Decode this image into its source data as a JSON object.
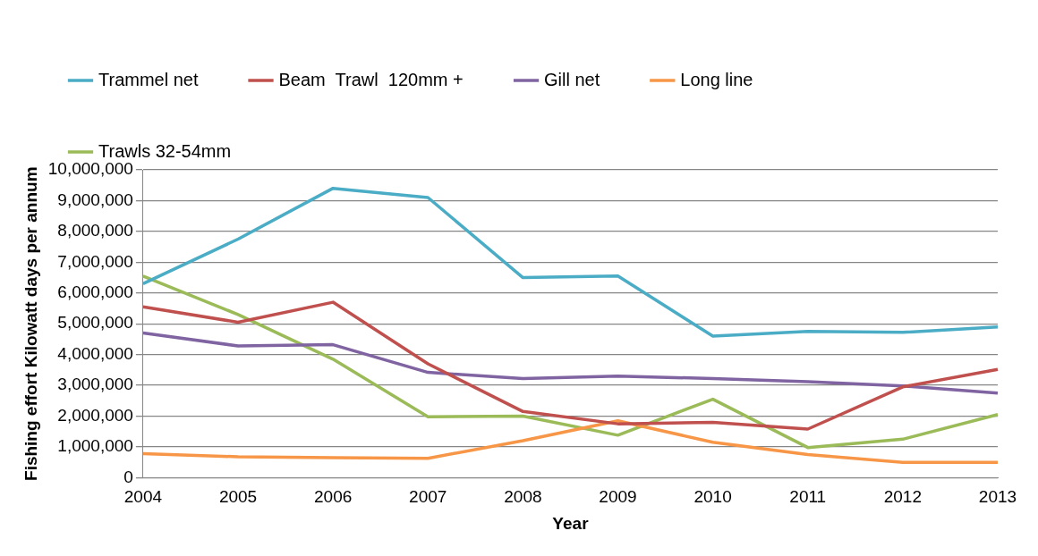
{
  "chart_data": {
    "type": "line",
    "xlabel": "Year",
    "ylabel": "Fishing effort Kilowatt days per annum",
    "categories": [
      "2004",
      "2005",
      "2006",
      "2007",
      "2008",
      "2009",
      "2010",
      "2011",
      "2012",
      "2013"
    ],
    "series": [
      {
        "name": "Trammel net",
        "color": "#4bacc6",
        "values": [
          6300000,
          7750000,
          9400000,
          9100000,
          6500000,
          6550000,
          4600000,
          4750000,
          4720000,
          4900000
        ]
      },
      {
        "name": "Beam  Trawl  120mm +",
        "color": "#c0504d",
        "values": [
          5550000,
          5050000,
          5700000,
          3700000,
          2150000,
          1750000,
          1800000,
          1580000,
          2950000,
          3520000
        ]
      },
      {
        "name": "Gill net",
        "color": "#8064a2",
        "values": [
          4700000,
          4280000,
          4320000,
          3420000,
          3220000,
          3300000,
          3220000,
          3120000,
          2980000,
          2750000
        ]
      },
      {
        "name": "Long line",
        "color": "#f79646",
        "values": [
          780000,
          680000,
          650000,
          630000,
          1200000,
          1850000,
          1150000,
          750000,
          500000,
          500000
        ]
      },
      {
        "name": "Trawls 32-54mm",
        "color": "#9bbb59",
        "values": [
          6550000,
          5300000,
          3850000,
          1980000,
          2000000,
          1380000,
          2550000,
          980000,
          1250000,
          2050000
        ]
      }
    ],
    "ylim": [
      0,
      10000000
    ],
    "yticks": [
      0,
      {
        "value": 1000000,
        "label": "1,000,000"
      },
      {
        "value": 2000000,
        "label": "2,000,000"
      },
      {
        "value": 3000000,
        "label": "3,000,000"
      },
      {
        "value": 4000000,
        "label": "4,000,000"
      },
      {
        "value": 5000000,
        "label": "5,000,000"
      },
      {
        "value": 6000000,
        "label": "6,000,000"
      },
      {
        "value": 7000000,
        "label": "7,000,000"
      },
      {
        "value": 8000000,
        "label": "8,000,000"
      },
      {
        "value": 9000000,
        "label": "9,000,000"
      },
      {
        "value": 10000000,
        "label": "10,000,000"
      }
    ],
    "grid": "y",
    "legend": "top",
    "marker": "none",
    "line_style": "solid"
  }
}
